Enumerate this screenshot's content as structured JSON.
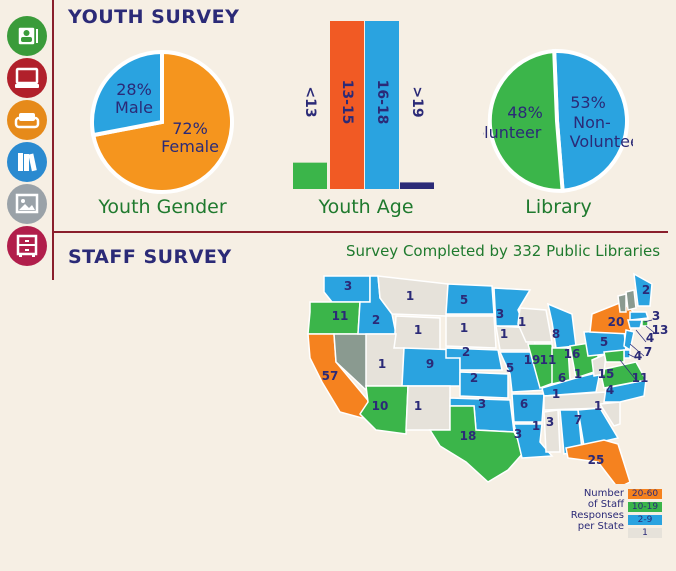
{
  "sidebar": {
    "icons": [
      {
        "name": "contacts-icon",
        "color": "#3a9b3a"
      },
      {
        "name": "computer-icon",
        "color": "#b1202b"
      },
      {
        "name": "sofa-icon",
        "color": "#e68a1a"
      },
      {
        "name": "books-icon",
        "color": "#2a8ad0"
      },
      {
        "name": "picture-icon",
        "color": "#9aa2a8"
      },
      {
        "name": "cabinet-icon",
        "color": "#b11e4b"
      }
    ]
  },
  "youth_survey": {
    "title": "YOUTH SURVEY"
  },
  "staff_survey": {
    "title": "STAFF SURVEY",
    "subtitle": "Survey Completed by 332 Public Libraries"
  },
  "chart_data": [
    {
      "type": "pie",
      "caption": "Youth Gender",
      "slices": [
        {
          "label": "Female",
          "value": 72,
          "text": "72%",
          "color": "#f5951e"
        },
        {
          "label": "Male",
          "value": 28,
          "text": "28%",
          "color": "#2aa3e0"
        }
      ]
    },
    {
      "type": "bar",
      "caption": "Youth Age",
      "categories": [
        "<13",
        "13-15",
        "16-18",
        ">19"
      ],
      "values": [
        8,
        51,
        51,
        2
      ],
      "colors": [
        "#3bb54a",
        "#f15a24",
        "#2aa3e0",
        "#2b2a77"
      ]
    },
    {
      "type": "pie",
      "caption": "Library",
      "slices": [
        {
          "label": "Non-Volunteer",
          "value": 53,
          "text": "53%",
          "color": "#2aa3e0"
        },
        {
          "label": "Volunteer",
          "value": 48,
          "text": "48%",
          "color": "#3bb54a"
        }
      ]
    },
    {
      "type": "choropleth",
      "title": "Survey Completed by 332 Public Libraries",
      "legend": {
        "title": [
          "Number",
          "of Staff",
          "Responses",
          "per State"
        ],
        "bins": [
          {
            "label": "20-60",
            "color": "#f5821f"
          },
          {
            "label": "10-19",
            "color": "#3bb54a"
          },
          {
            "label": "2-9",
            "color": "#2aa3e0"
          },
          {
            "label": "1",
            "color": "#e6e2da"
          }
        ],
        "no_data_color": "#8a9a90"
      },
      "states": [
        {
          "state": "WA",
          "value": 3
        },
        {
          "state": "OR",
          "value": 11
        },
        {
          "state": "CA",
          "value": 57
        },
        {
          "state": "ID",
          "value": 2
        },
        {
          "state": "MT",
          "value": 1
        },
        {
          "state": "WY",
          "value": 1
        },
        {
          "state": "UT",
          "value": 1
        },
        {
          "state": "CO",
          "value": 9
        },
        {
          "state": "AZ",
          "value": 10
        },
        {
          "state": "NM",
          "value": 1
        },
        {
          "state": "ND",
          "value": 5
        },
        {
          "state": "SD",
          "value": 1
        },
        {
          "state": "NE",
          "value": 2
        },
        {
          "state": "KS",
          "value": 2
        },
        {
          "state": "OK",
          "value": 3
        },
        {
          "state": "TX",
          "value": 18
        },
        {
          "state": "MN",
          "value": 3
        },
        {
          "state": "IA",
          "value": 1
        },
        {
          "state": "MO",
          "value": 5
        },
        {
          "state": "AR",
          "value": 6
        },
        {
          "state": "LA",
          "value": 3
        },
        {
          "state": "MS",
          "value": 1
        },
        {
          "state": "WI",
          "value": 1
        },
        {
          "state": "IL",
          "value": 19
        },
        {
          "state": "MI",
          "value": 8
        },
        {
          "state": "IN",
          "value": 11
        },
        {
          "state": "OH",
          "value": 16
        },
        {
          "state": "KY",
          "value": 6
        },
        {
          "state": "TN",
          "value": 1
        },
        {
          "state": "AL",
          "value": 3
        },
        {
          "state": "GA",
          "value": 7
        },
        {
          "state": "FL",
          "value": 25
        },
        {
          "state": "SC",
          "value": 1
        },
        {
          "state": "NC",
          "value": 4
        },
        {
          "state": "VA",
          "value": 15
        },
        {
          "state": "WV",
          "value": 1
        },
        {
          "state": "PA",
          "value": 5
        },
        {
          "state": "NY",
          "value": 20
        },
        {
          "state": "ME",
          "value": 2
        },
        {
          "state": "MA",
          "value": 3
        },
        {
          "state": "RI",
          "value": 13
        },
        {
          "state": "CT",
          "value": 4
        },
        {
          "state": "NJ",
          "value": 7
        },
        {
          "state": "DE",
          "value": 4
        },
        {
          "state": "MD",
          "value": 11
        }
      ]
    }
  ]
}
